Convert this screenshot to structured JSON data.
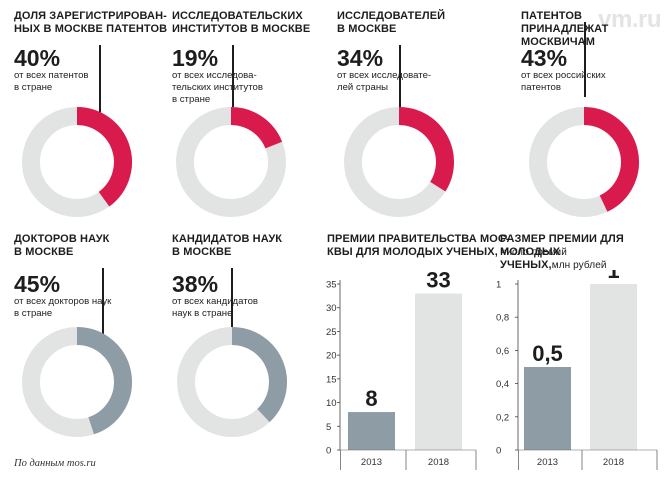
{
  "watermark": "vm.ru",
  "source": "По данным mos.ru",
  "colors": {
    "accent": "#d91a4d",
    "slate": "#8d9ca5",
    "track": "#e2e3e3",
    "bar_light": "#e2e3e3"
  },
  "donuts": [
    {
      "title": "Доля зарегистрирован-\nных в Москве патентов",
      "value_label": "40%",
      "value": 40,
      "caption": "от всех патентов\nв стране",
      "color": "accent"
    },
    {
      "title": "Исследовательских\nинститутов в Москве",
      "value_label": "19%",
      "value": 19,
      "caption": "от всех исследова-\nтельских институтов\nв стране",
      "color": "accent"
    },
    {
      "title": "Исследователей\nв Москве",
      "value_label": "34%",
      "value": 34,
      "caption": "от всех исследовате-\nлей страны",
      "color": "accent"
    },
    {
      "title": "Патентов принадлежат\nмосквичам",
      "value_label": "43%",
      "value": 43,
      "caption": "от всех российских\nпатентов",
      "color": "accent"
    },
    {
      "title": "Докторов наук\nв Москве",
      "value_label": "45%",
      "value": 45,
      "caption": "от всех докторов наук\nв стране",
      "color": "slate"
    },
    {
      "title": "Кандидатов наук\nв Москве",
      "value_label": "38%",
      "value": 38,
      "caption": "от всех кандидатов\nнаук в стране",
      "color": "slate"
    }
  ],
  "chart_data": [
    {
      "type": "bar",
      "title": "Премии правительства Мос-\nквы для молодых ученых,",
      "ylabel": "число премий",
      "categories": [
        "2013",
        "2018"
      ],
      "values": [
        8,
        33
      ],
      "value_labels": [
        "8",
        "33"
      ],
      "ylim": [
        0,
        35
      ],
      "yticks": [
        0,
        5,
        10,
        15,
        20,
        25,
        30,
        35
      ],
      "ytick_labels": [
        "0",
        "5",
        "10",
        "15",
        "20",
        "25",
        "30",
        "35"
      ]
    },
    {
      "type": "bar",
      "title": "Размер премии для молодых\nученых,",
      "ylabel": "млн рублей",
      "categories": [
        "2013",
        "2018"
      ],
      "values": [
        0.5,
        1
      ],
      "value_labels": [
        "0,5",
        "1"
      ],
      "ylim": [
        0,
        1
      ],
      "yticks": [
        0,
        0.2,
        0.4,
        0.6,
        0.8,
        1
      ],
      "ytick_labels": [
        "0",
        "0,2",
        "0,4",
        "0,6",
        "0,8",
        "1"
      ]
    }
  ]
}
